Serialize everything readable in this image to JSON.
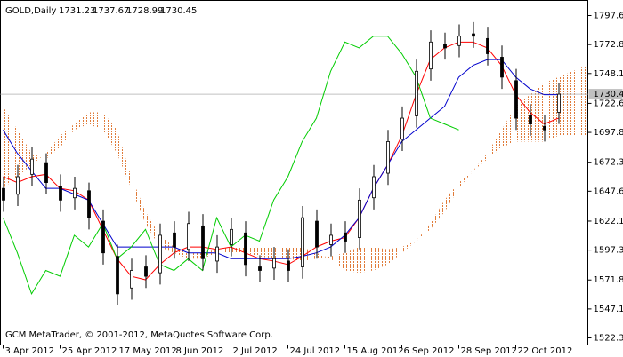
{
  "chart_data": {
    "type": "candlestick",
    "title": "GOLD,Daily",
    "ohlc_header": [
      1731.23,
      1737.67,
      1728.99,
      1730.45
    ],
    "footer": "GCM MetaTrader, © 2001-2012, MetaQuotes Software Corp.",
    "current_price": 1730.45,
    "xlim": [
      -0.75,
      164.25
    ],
    "ylim": [
      1516.3,
      1810.5
    ],
    "yticks": [
      {
        "value": 1797.6,
        "label": "1797.60"
      },
      1772.85,
      1748.1,
      1722.6,
      1697.85,
      1672.35,
      {
        "value": 1647.6,
        "label": "1647.60"
      },
      1622.1,
      1597.35,
      1571.85,
      1547.1,
      1522.35
    ],
    "xticks": [
      {
        "value": 0,
        "label": "3 Apr 2012"
      },
      {
        "value": 16,
        "label": "25 Apr 2012"
      },
      {
        "value": 32,
        "label": "17 May 2012"
      },
      {
        "value": 48,
        "label": "8 Jun 2012"
      },
      {
        "value": 64,
        "label": "2 Jul 2012"
      },
      {
        "value": 80,
        "label": "24 Jul 2012"
      },
      {
        "value": 96,
        "label": "15 Aug 2012"
      },
      {
        "value": 112,
        "label": "6 Sep 2012"
      },
      {
        "value": 128,
        "label": "28 Sep 2012"
      },
      {
        "value": 144,
        "label": "22 Oct 2012"
      }
    ],
    "x": [
      0,
      4,
      8,
      12,
      16,
      20,
      24,
      28,
      32,
      36,
      40,
      44,
      48,
      52,
      56,
      60,
      64,
      68,
      72,
      76,
      80,
      84,
      88,
      92,
      96,
      100,
      104,
      108,
      112,
      116,
      120,
      124,
      128,
      132,
      136,
      140,
      144,
      148,
      152,
      156
    ],
    "open": [
      1650,
      1645,
      1662,
      1672,
      1652,
      1642,
      1648,
      1622,
      1592,
      1565,
      1583,
      1578,
      1612,
      1598,
      1618,
      1588,
      1602,
      1612,
      1583,
      1582,
      1588,
      1583,
      1622,
      1602,
      1612,
      1608,
      1642,
      1663,
      1692,
      1712,
      1752,
      1773,
      1772,
      1782,
      1778,
      1762,
      1742,
      1712,
      1703,
      1715
    ],
    "high": [
      1660,
      1670,
      1685,
      1680,
      1662,
      1660,
      1655,
      1632,
      1602,
      1590,
      1593,
      1620,
      1622,
      1630,
      1628,
      1610,
      1625,
      1622,
      1593,
      1600,
      1598,
      1635,
      1632,
      1620,
      1622,
      1650,
      1670,
      1700,
      1720,
      1760,
      1785,
      1783,
      1790,
      1792,
      1788,
      1772,
      1752,
      1722,
      1713,
      1740
    ],
    "low": [
      1630,
      1635,
      1652,
      1645,
      1630,
      1632,
      1615,
      1585,
      1550,
      1555,
      1565,
      1568,
      1590,
      1588,
      1580,
      1578,
      1592,
      1575,
      1570,
      1572,
      1570,
      1573,
      1590,
      1592,
      1595,
      1598,
      1632,
      1653,
      1682,
      1702,
      1742,
      1760,
      1762,
      1770,
      1755,
      1735,
      1700,
      1695,
      1690,
      1705
    ],
    "close": [
      1640,
      1660,
      1675,
      1655,
      1640,
      1650,
      1625,
      1595,
      1560,
      1580,
      1575,
      1610,
      1600,
      1620,
      1590,
      1600,
      1615,
      1585,
      1580,
      1590,
      1580,
      1625,
      1600,
      1610,
      1605,
      1640,
      1660,
      1690,
      1710,
      1750,
      1775,
      1770,
      1780,
      1780,
      1765,
      1745,
      1710,
      1705,
      1700,
      1730.45
    ],
    "cloud": {
      "color": "#e07b39",
      "x": [
        0,
        4,
        8,
        12,
        16,
        20,
        24,
        28,
        32,
        36,
        40,
        44,
        48,
        52,
        56,
        60,
        64,
        68,
        72,
        76,
        80,
        84,
        88,
        92,
        96,
        100,
        104,
        108,
        112,
        116,
        120,
        124,
        128,
        132,
        136,
        140,
        144,
        148,
        152,
        156,
        160,
        164
      ],
      "span_a": [
        1720,
        1700,
        1680,
        1675,
        1685,
        1700,
        1705,
        1700,
        1680,
        1650,
        1620,
        1600,
        1595,
        1590,
        1590,
        1595,
        1595,
        1595,
        1592,
        1590,
        1590,
        1588,
        1590,
        1592,
        1595,
        1600,
        1600,
        1598,
        1600,
        1605,
        1615,
        1630,
        1650,
        1665,
        1680,
        1700,
        1720,
        1730,
        1740,
        1745,
        1750,
        1755
      ],
      "span_b": [
        1650,
        1660,
        1670,
        1680,
        1695,
        1705,
        1715,
        1715,
        1700,
        1660,
        1630,
        1610,
        1600,
        1595,
        1595,
        1598,
        1600,
        1600,
        1600,
        1600,
        1600,
        1600,
        1595,
        1590,
        1580,
        1578,
        1580,
        1585,
        1595,
        1605,
        1620,
        1640,
        1655,
        1665,
        1675,
        1685,
        1690,
        1690,
        1690,
        1695,
        1695,
        1695
      ]
    },
    "series": [
      {
        "color": "#ff0000",
        "x": [
          0,
          4,
          8,
          12,
          16,
          20,
          24,
          28,
          32,
          36,
          40,
          44,
          48,
          52,
          56,
          60,
          64,
          68,
          72,
          76,
          80,
          84,
          88,
          92,
          96,
          100,
          104,
          108,
          112,
          116,
          120,
          124,
          128,
          132,
          136,
          140,
          144,
          148,
          152,
          156
        ],
        "values": [
          1660,
          1655,
          1660,
          1662,
          1650,
          1648,
          1640,
          1615,
          1590,
          1575,
          1572,
          1585,
          1595,
          1600,
          1600,
          1598,
          1600,
          1595,
          1590,
          1588,
          1585,
          1592,
          1600,
          1605,
          1608,
          1625,
          1650,
          1670,
          1695,
          1730,
          1760,
          1770,
          1775,
          1775,
          1770,
          1755,
          1730,
          1715,
          1705,
          1710
        ]
      },
      {
        "color": "#0000cc",
        "x": [
          0,
          4,
          8,
          12,
          16,
          20,
          24,
          28,
          32,
          36,
          40,
          44,
          48,
          52,
          56,
          60,
          64,
          68,
          72,
          76,
          80,
          84,
          88,
          92,
          96,
          100,
          104,
          108,
          112,
          116,
          120,
          124,
          128,
          132,
          136,
          140,
          144,
          148,
          152,
          156
        ],
        "values": [
          1700,
          1680,
          1665,
          1650,
          1650,
          1645,
          1640,
          1620,
          1600,
          1600,
          1600,
          1600,
          1600,
          1595,
          1595,
          1595,
          1590,
          1590,
          1590,
          1590,
          1590,
          1592,
          1595,
          1600,
          1610,
          1625,
          1650,
          1670,
          1690,
          1700,
          1710,
          1720,
          1745,
          1755,
          1760,
          1760,
          1745,
          1735,
          1730,
          1730
        ]
      },
      {
        "color": "#00cc00",
        "x": [
          0,
          4,
          8,
          12,
          16,
          20,
          24,
          28,
          32,
          36,
          40,
          44,
          48,
          52,
          56,
          60,
          64,
          68,
          72,
          76,
          80,
          84,
          88,
          92,
          96,
          100,
          104,
          108,
          112,
          116,
          120,
          124,
          128
        ],
        "values": [
          1625,
          1595,
          1560,
          1580,
          1575,
          1610,
          1600,
          1620,
          1590,
          1600,
          1615,
          1585,
          1580,
          1590,
          1580,
          1625,
          1600,
          1610,
          1605,
          1640,
          1660,
          1690,
          1710,
          1750,
          1775,
          1770,
          1780,
          1780,
          1765,
          1745,
          1710,
          1705,
          1700
        ]
      }
    ]
  }
}
